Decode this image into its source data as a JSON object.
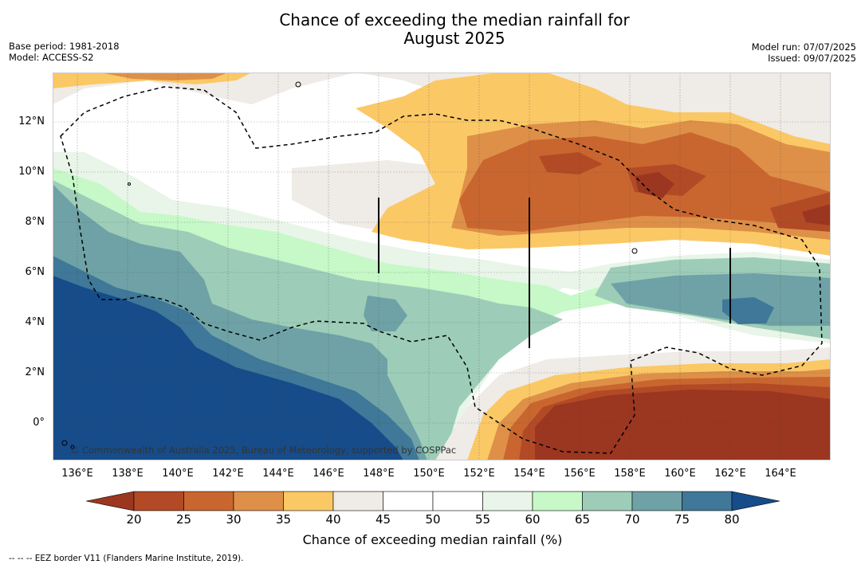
{
  "title_line1": "Chance of exceeding the median rainfall for",
  "title_line2": "August 2025",
  "base_period": "Base period: 1981-2018",
  "model": "Model: ACCESS-S2",
  "model_run": "Model run: 07/07/2025",
  "issued": "Issued: 09/07/2025",
  "copyright": "© Commonwealth of Australia 2025, Bureau of Meteorology, supported by COSPPac",
  "footnote": "--  --  -- EEZ border V11 (Flanders Marine Institute, 2019).",
  "map": {
    "x_ticks": [
      "136°E",
      "138°E",
      "140°E",
      "142°E",
      "144°E",
      "146°E",
      "148°E",
      "150°E",
      "152°E",
      "154°E",
      "156°E",
      "158°E",
      "160°E",
      "162°E",
      "164°E"
    ],
    "y_ticks": [
      "12°N",
      "10°N",
      "8°N",
      "6°N",
      "4°N",
      "2°N",
      "0°"
    ],
    "lon_range": [
      135,
      166
    ],
    "lat_range": [
      -1.5,
      14
    ]
  },
  "colorbar": {
    "label": "Chance of exceeding median rainfall (%)",
    "ticks": [
      "20",
      "25",
      "30",
      "35",
      "40",
      "45",
      "50",
      "55",
      "60",
      "65",
      "70",
      "75",
      "80"
    ],
    "colors": [
      "#9b3620",
      "#b34a26",
      "#c96630",
      "#de9048",
      "#fbc866",
      "#efebe6",
      "#ffffff",
      "#ffffff",
      "#e8f5e8",
      "#c6f8c8",
      "#9dcdb8",
      "#6fa2a6",
      "#3f7898",
      "#164c8a"
    ]
  }
}
